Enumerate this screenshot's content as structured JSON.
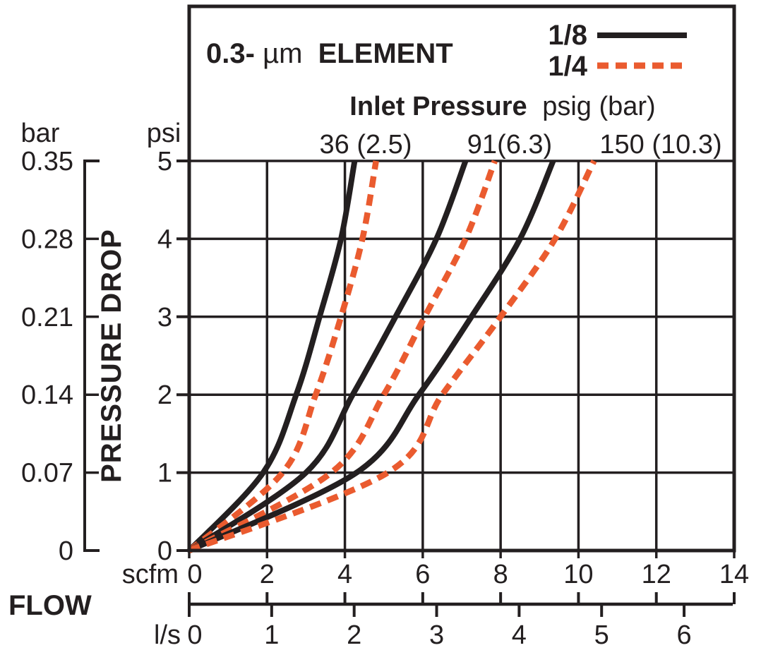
{
  "chart_data": {
    "type": "line",
    "title_parts": [
      "0.3-",
      "µm",
      "ELEMENT"
    ],
    "title": "0.3-µm ELEMENT",
    "inlet_header": {
      "bold": "Inlet Pressure",
      "regular": "psig (bar)"
    },
    "series_labels": [
      "36 (2.5)",
      "91(6.3)",
      "150 (10.3)"
    ],
    "legend": [
      {
        "label": "1/8",
        "line": "solid",
        "color": "#231f20"
      },
      {
        "label": "1/4",
        "line": "dashed",
        "color": "#ea5b2f"
      }
    ],
    "colors": {
      "black": "#231f20",
      "orange": "#ea5b2f",
      "grid": "#231f20"
    },
    "x_axis": {
      "label": "FLOW",
      "primary_unit": "scfm",
      "primary_ticks": [
        0,
        2,
        4,
        6,
        8,
        10,
        12,
        14
      ],
      "secondary_unit": "l/s",
      "secondary_ticks": [
        0,
        1,
        2,
        3,
        4,
        5,
        6
      ],
      "range_scfm": [
        0,
        14
      ],
      "scfm_per_ls": 2.1189
    },
    "y_axis": {
      "label": "PRESSURE DROP",
      "primary_unit": "psi",
      "primary_ticks": [
        "5",
        "4",
        "3",
        "2",
        "1",
        "0"
      ],
      "secondary_unit": "bar",
      "secondary_ticks": [
        "0.35",
        "0.28",
        "0.21",
        "0.14",
        "0.07",
        "0"
      ],
      "range_psi": [
        0,
        5
      ]
    },
    "grid": true,
    "series": [
      {
        "name": "1/8 at 36 psig (2.5 bar)",
        "size": "1/8",
        "inlet_pressure": "36 (2.5)",
        "style": "solid",
        "psi": [
          0,
          1,
          2,
          3,
          4,
          5
        ],
        "scfm": [
          0,
          1.9,
          2.75,
          3.35,
          3.9,
          4.25
        ]
      },
      {
        "name": "1/4 at 36 psig (2.5 bar)",
        "size": "1/4",
        "inlet_pressure": "36 (2.5)",
        "style": "dashed",
        "psi": [
          0,
          1,
          2,
          3,
          4,
          5
        ],
        "scfm": [
          0,
          2.4,
          3.25,
          3.9,
          4.45,
          4.8
        ]
      },
      {
        "name": "1/8 at 91 psig (6.3 bar)",
        "size": "1/8",
        "inlet_pressure": "91(6.3)",
        "style": "solid",
        "psi": [
          0,
          1,
          2,
          3,
          4,
          5
        ],
        "scfm": [
          0,
          3.0,
          4.2,
          5.3,
          6.35,
          7.1
        ]
      },
      {
        "name": "1/4 at 91 psig (6.3 bar)",
        "size": "1/4",
        "inlet_pressure": "91(6.3)",
        "style": "dashed",
        "psi": [
          0,
          1,
          2,
          3,
          4,
          5
        ],
        "scfm": [
          0,
          3.65,
          5.0,
          6.05,
          7.1,
          7.85
        ]
      },
      {
        "name": "1/8 at 150 psig (10.3 bar)",
        "size": "1/8",
        "inlet_pressure": "150 (10.3)",
        "style": "solid",
        "psi": [
          0,
          1,
          2,
          3,
          4,
          5
        ],
        "scfm": [
          0,
          4.3,
          5.9,
          7.25,
          8.5,
          9.35
        ]
      },
      {
        "name": "1/4 at 150 psig (10.3 bar)",
        "size": "1/4",
        "inlet_pressure": "150 (10.3)",
        "style": "dashed",
        "psi": [
          0,
          1,
          2,
          3,
          4,
          5
        ],
        "scfm": [
          0,
          5.1,
          6.5,
          8.0,
          9.4,
          10.4
        ]
      }
    ]
  }
}
